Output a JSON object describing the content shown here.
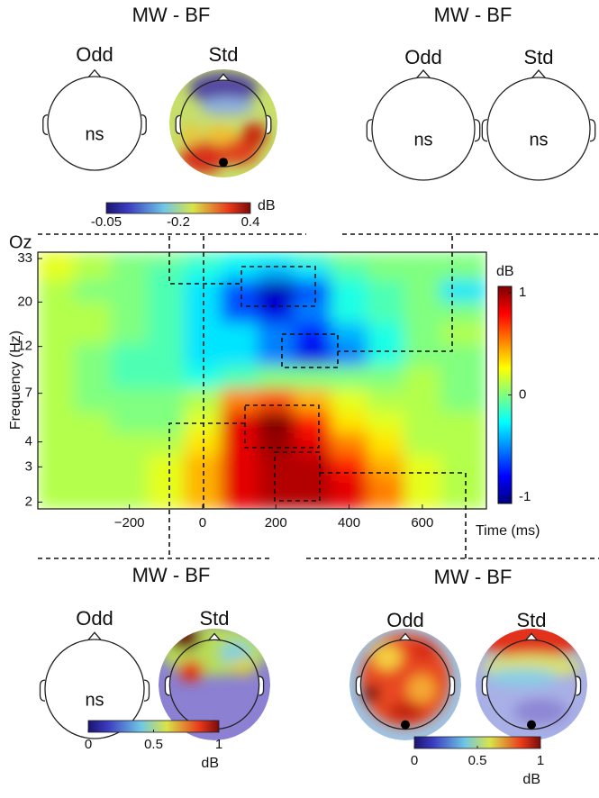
{
  "chart_data": {
    "type": "heatmap",
    "corner_label": "Oz",
    "xlabel": "Time (ms)",
    "ylabel": "Frequency (Hz)",
    "x": [
      -400,
      -300,
      -200,
      -100,
      0,
      100,
      200,
      300,
      400,
      500,
      600,
      700
    ],
    "y": [
      2,
      2.5,
      3,
      4,
      5,
      6.5,
      8.5,
      11,
      14,
      18,
      23,
      29,
      34
    ],
    "z": [
      [
        0.1,
        0.1,
        0.1,
        0.2,
        0.4,
        0.8,
        0.9,
        0.9,
        0.8,
        0.5,
        0.2,
        0.1
      ],
      [
        0.1,
        0.1,
        0.1,
        0.2,
        0.4,
        0.8,
        0.9,
        0.9,
        0.8,
        0.5,
        0.2,
        0.1
      ],
      [
        0.1,
        0.1,
        0.1,
        0.2,
        0.4,
        0.8,
        0.9,
        0.9,
        0.7,
        0.4,
        0.2,
        0.1
      ],
      [
        0.1,
        0.1,
        0.1,
        0.1,
        0.3,
        0.8,
        0.95,
        0.8,
        0.5,
        0.3,
        0.1,
        0.1
      ],
      [
        0.1,
        0.1,
        0.0,
        0.0,
        0.2,
        0.8,
        1.0,
        0.7,
        0.3,
        0.2,
        0.1,
        0.1
      ],
      [
        0.1,
        0.0,
        0.0,
        0.0,
        0.1,
        0.5,
        0.6,
        0.4,
        0.2,
        0.1,
        0.1,
        0.0
      ],
      [
        0.1,
        0.0,
        -0.1,
        -0.1,
        -0.2,
        -0.1,
        0.0,
        0.0,
        0.0,
        0.0,
        0.1,
        0.0
      ],
      [
        0.1,
        0.0,
        -0.1,
        -0.1,
        -0.3,
        -0.3,
        -0.5,
        -0.8,
        -0.5,
        -0.2,
        0.0,
        0.0
      ],
      [
        0.1,
        0.1,
        0.0,
        -0.1,
        -0.3,
        -0.3,
        -0.5,
        -0.7,
        -0.4,
        -0.2,
        0.0,
        0.1
      ],
      [
        0.1,
        0.1,
        0.0,
        -0.1,
        -0.3,
        -0.6,
        -0.8,
        -0.5,
        -0.2,
        -0.1,
        0.0,
        0.0
      ],
      [
        0.1,
        0.0,
        0.0,
        -0.1,
        -0.3,
        -0.6,
        -0.9,
        -0.6,
        -0.2,
        -0.1,
        0.0,
        -0.3
      ],
      [
        0.2,
        0.1,
        0.0,
        -0.1,
        -0.2,
        -0.3,
        -0.4,
        -0.3,
        -0.1,
        0.0,
        0.0,
        0.0
      ],
      [
        0.2,
        0.1,
        0.0,
        0.0,
        -0.1,
        -0.2,
        -0.2,
        -0.1,
        0.0,
        0.0,
        0.0,
        0.0
      ]
    ],
    "xlim": [
      -450,
      775
    ],
    "ylim": [
      1.85,
      35.5
    ],
    "xticks": [
      {
        "value": -200,
        "label": "−200"
      },
      0,
      200,
      400,
      600
    ],
    "yticks": [
      2,
      3,
      4,
      7,
      12,
      20,
      33
    ],
    "ylog": true,
    "colorbar_label": "dB",
    "zlim": [
      -1,
      1
    ],
    "zticks": [
      -1,
      0,
      1
    ],
    "colormap": "jet"
  },
  "panels": [
    {
      "title": "MW - BF",
      "heads": [
        {
          "label": "Odd",
          "note": "ns"
        },
        {
          "label": "Std"
        }
      ],
      "colorbar_label": "dB",
      "colorbar_labels": [
        "-0.05",
        "-0.2",
        "0.4"
      ]
    },
    {
      "title": "MW - BF",
      "heads": [
        {
          "label": "Odd",
          "note": "ns"
        },
        {
          "label": "Std",
          "note": "ns"
        }
      ]
    },
    {
      "title": "MW - BF",
      "heads": [
        {
          "label": "Odd",
          "note": "ns"
        },
        {
          "label": "Std"
        }
      ],
      "colorbar_label": "dB",
      "clim": [
        0,
        1
      ],
      "cticks": [
        0,
        0.5,
        1
      ]
    },
    {
      "title": "MW - BF",
      "heads": [
        {
          "label": "Odd"
        },
        {
          "label": "Std"
        }
      ],
      "colorbar_label": "dB",
      "clim": [
        0,
        1
      ],
      "cticks": [
        0,
        0.5,
        1
      ]
    }
  ]
}
